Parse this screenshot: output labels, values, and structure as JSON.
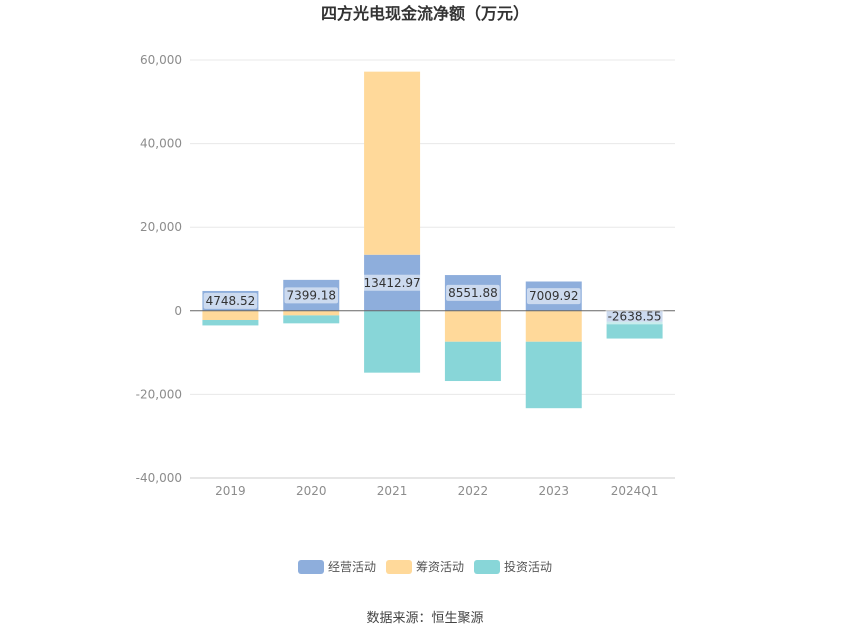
{
  "chart_data": {
    "type": "bar",
    "stacked": true,
    "title": "四方光电现金流净额（万元）",
    "categories": [
      "2019",
      "2020",
      "2021",
      "2022",
      "2023",
      "2024Q1"
    ],
    "series": [
      {
        "name": "经营活动",
        "color": "#8eaedc",
        "values": [
          4748.52,
          7399.18,
          13412.97,
          8551.88,
          7009.92,
          -2638.55
        ]
      },
      {
        "name": "筹资活动",
        "color": "#ffd99a",
        "values": [
          -2200,
          -1100,
          43800,
          -7400,
          -7400,
          0
        ]
      },
      {
        "name": "投资活动",
        "color": "#88d6d8",
        "values": [
          -1300,
          -1900,
          -14800,
          -9400,
          -15900,
          -4000
        ]
      }
    ],
    "data_labels": [
      "4748.52",
      "7399.18",
      "13412.97",
      "8551.88",
      "7009.92",
      "-2638.55"
    ],
    "yticks": [
      60000,
      40000,
      20000,
      0,
      -20000,
      -40000
    ],
    "ytick_labels": [
      "60,000",
      "40,000",
      "20,000",
      "0",
      "-20,000",
      "-40,000"
    ],
    "ylim": [
      -40000,
      60000
    ],
    "grid": true,
    "legend_position": "bottom"
  },
  "source_text": "数据来源：恒生聚源"
}
